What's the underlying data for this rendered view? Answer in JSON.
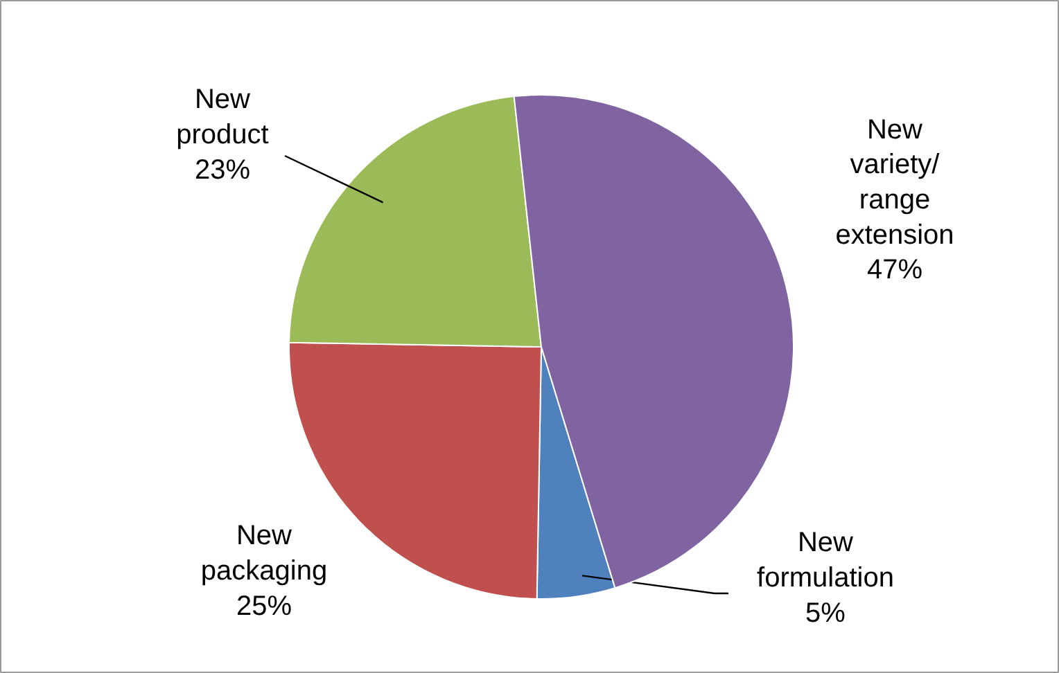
{
  "chart_data": {
    "type": "pie",
    "categories": [
      "New formulation",
      "New packaging",
      "New product",
      "New variety/range extension"
    ],
    "values": [
      5,
      25,
      23,
      47
    ],
    "colors": [
      "#4f81bd",
      "#c0504d",
      "#9bbb59",
      "#8064a2"
    ],
    "value_labels": [
      "5%",
      "25%",
      "23%",
      "47%"
    ]
  }
}
